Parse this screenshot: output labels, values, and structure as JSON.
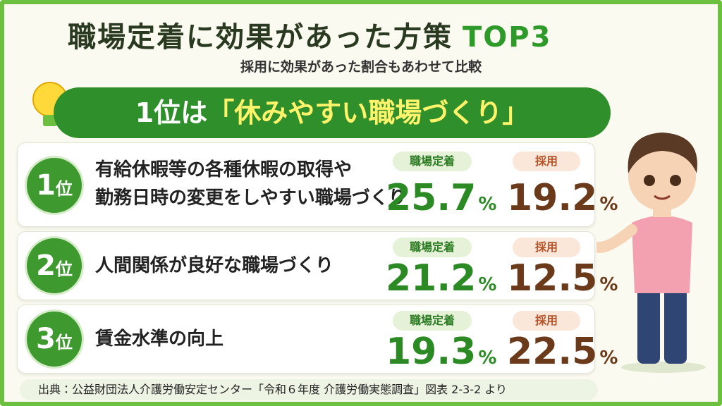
{
  "header": {
    "title": "職場定着に効果があった方策",
    "title_accent": "TOP3",
    "subtitle": "採用に効果があった割合もあわせて比較"
  },
  "banner": {
    "lead": "1位は",
    "quote": "「休みやすい職場づくり」"
  },
  "items": [
    {
      "rank": "1",
      "rank_suffix": "位",
      "label_lines": [
        "有給休暇等の各種休暇の取得や",
        "勤務日時の変更をしやすい職場づくり"
      ],
      "retention_label": "職場定着",
      "retention": 25.7,
      "retention_unit": "%",
      "hiring_label": "採用",
      "hiring": 19.2,
      "hiring_unit": "%"
    },
    {
      "rank": "2",
      "rank_suffix": "位",
      "label_lines": [
        "人間関係が良好な職場づくり"
      ],
      "retention_label": "職場定着",
      "retention": 21.2,
      "retention_unit": "%",
      "hiring_label": "採用",
      "hiring": 12.5,
      "hiring_unit": "%"
    },
    {
      "rank": "3",
      "rank_suffix": "位",
      "label_lines": [
        "賃金水準の向上"
      ],
      "retention_label": "職場定着",
      "retention": 19.3,
      "retention_unit": "%",
      "hiring_label": "採用",
      "hiring": 22.5,
      "hiring_unit": "%"
    }
  ],
  "footer": {
    "source": "出典：公益財団法人介護労働安定センター「令和６年度 介護労働実態調査」図表 2-3-2 より"
  }
}
